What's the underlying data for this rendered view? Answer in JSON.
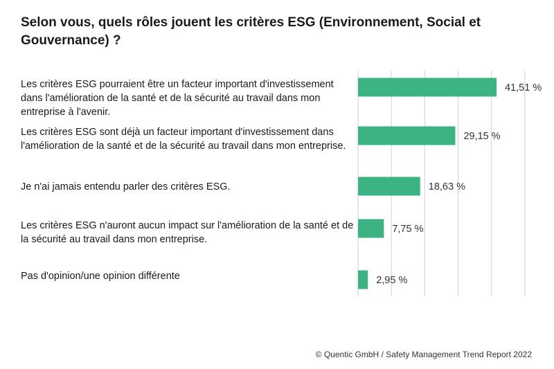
{
  "title": "Selon vous, quels rôles jouent les critères ESG (Environnement, Social et Gouvernance) ?",
  "footer": "© Quentic GmbH / Safety Management Trend Report 2022",
  "colors": {
    "bar": "#3db383",
    "grid": "#d0d0d0",
    "text": "#1a1a1a"
  },
  "chart_data": {
    "type": "bar",
    "orientation": "horizontal",
    "title": "Selon vous, quels rôles jouent les critères ESG (Environnement, Social et Gouvernance) ?",
    "categories": [
      "Les critères ESG pourraient être un facteur important d'investissement dans l'amélioration de la santé et de la sécurité au travail dans mon entreprise à l'avenir.",
      "Les critères ESG sont déjà un facteur important d'investissement dans l'amélioration de la santé et de la sécurité au travail dans mon entreprise.",
      "Je n'ai jamais entendu parler des critères ESG.",
      "Les critères ESG n'auront aucun impact sur l'amélioration de la santé et de la sécurité au travail dans mon entreprise.",
      "Pas d'opinion/une opinion différente"
    ],
    "values": [
      41.51,
      29.15,
      18.63,
      7.75,
      2.95
    ],
    "value_labels": [
      "41,51 %",
      "29,15 %",
      "18,63 %",
      "7,75 %",
      "2,95 %"
    ],
    "xlim": [
      0,
      50
    ],
    "grid": true,
    "xlabel": "",
    "ylabel": ""
  }
}
